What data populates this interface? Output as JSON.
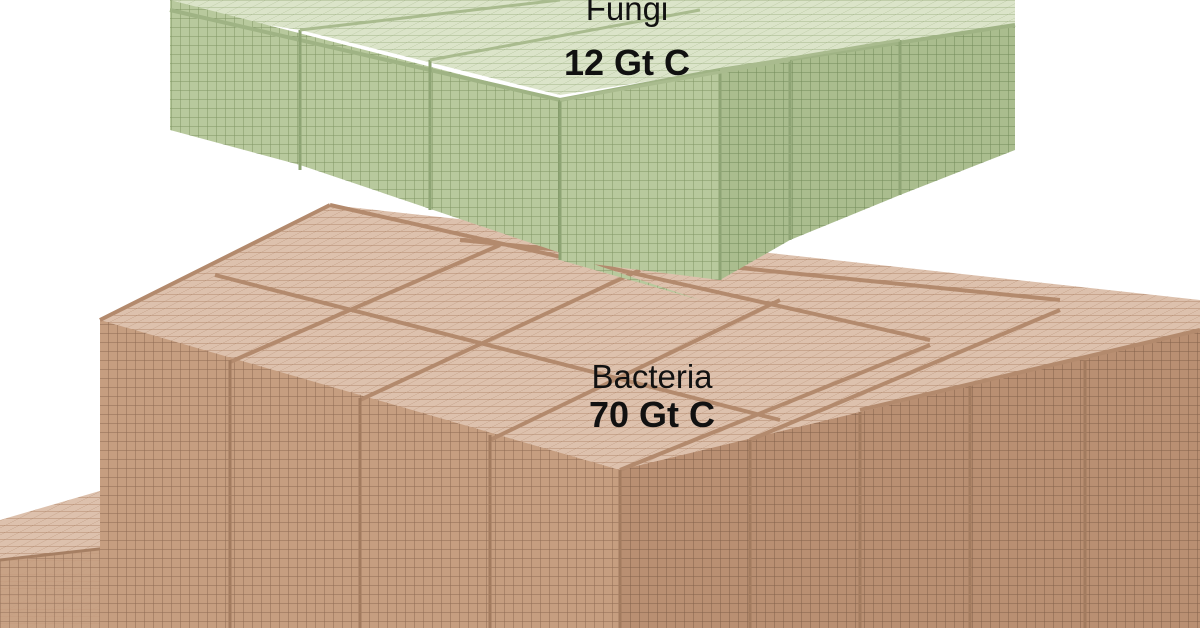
{
  "groups": [
    {
      "id": "fungi",
      "name": "Fungi",
      "value": "12 Gt C",
      "color": "#bfcfa6"
    },
    {
      "id": "bacteria",
      "name": "Bacteria",
      "value": "70 Gt C",
      "color": "#cfa98e"
    }
  ]
}
